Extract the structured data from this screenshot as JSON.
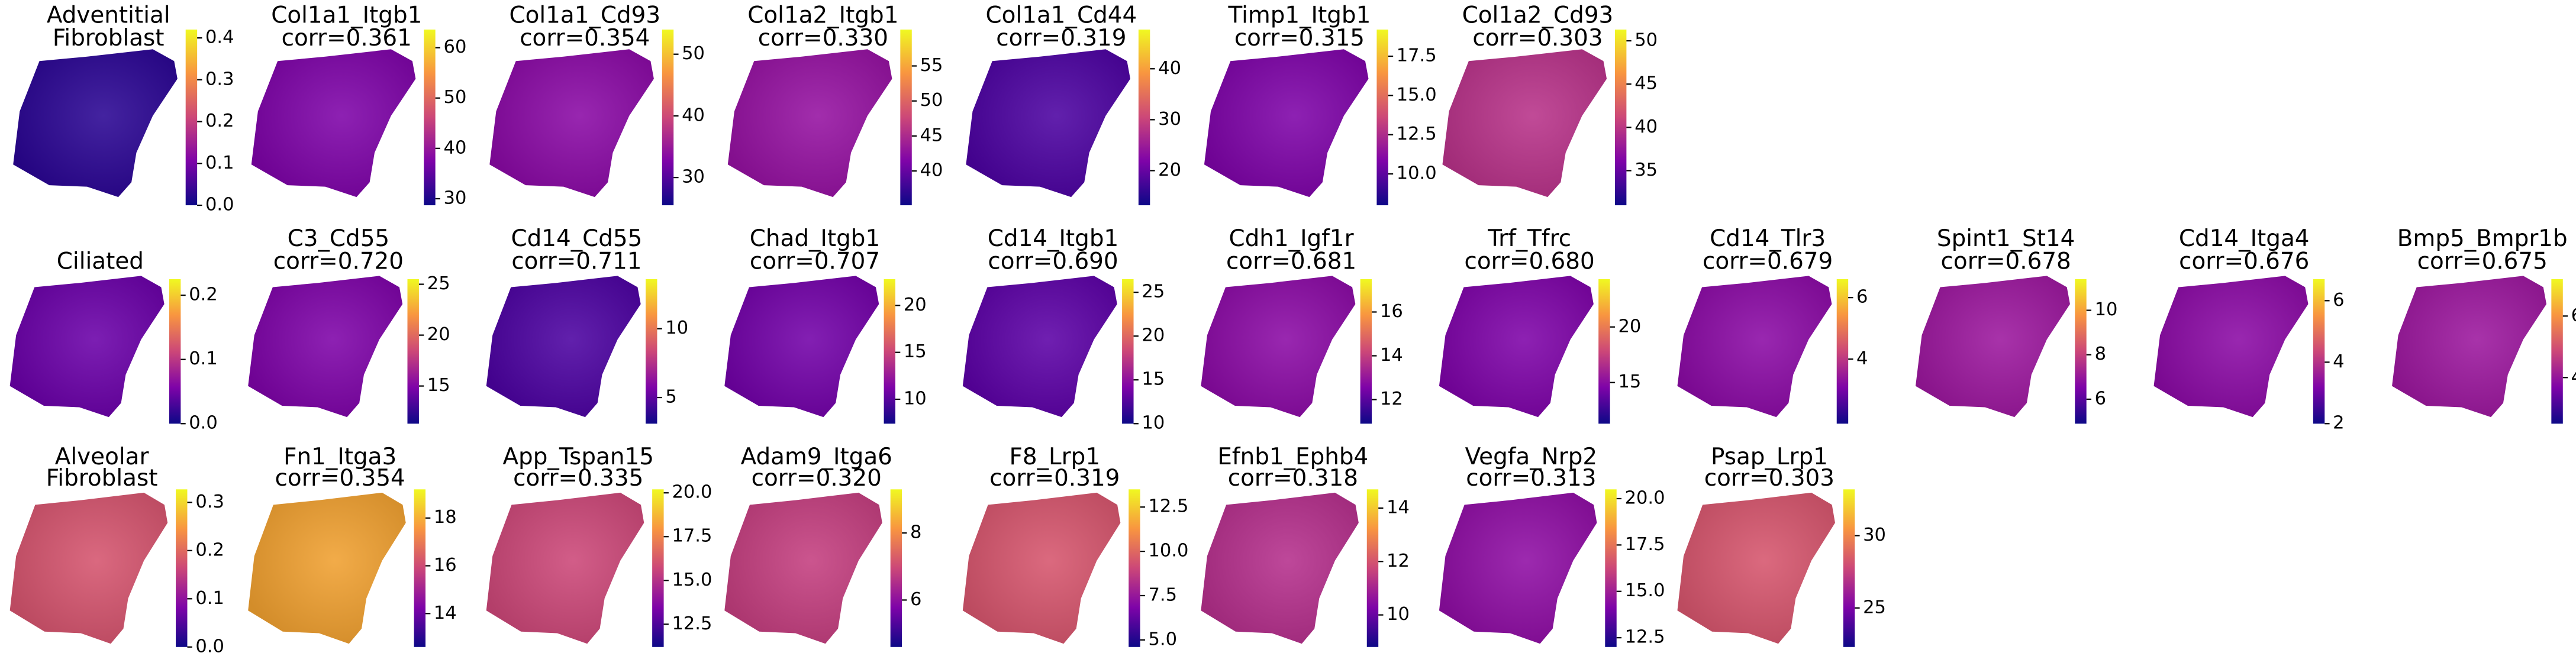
{
  "chart_data": [
    {
      "type": "heatmap",
      "title": [
        "Adventitial",
        "Fibroblast"
      ],
      "color": "#2a0593",
      "clim": [
        0,
        0.42
      ],
      "cticks": [
        {
          "value": 0,
          "label": "0.0"
        },
        0.1,
        0.2,
        0.3,
        0.4
      ]
    },
    {
      "type": "heatmap",
      "title": [
        "Col1a1_Itgb1",
        "corr=0.361"
      ],
      "color": "#7e03a8",
      "clim": [
        28.7,
        63.6
      ],
      "cticks": [
        30,
        40,
        50,
        60
      ]
    },
    {
      "type": "heatmap",
      "title": [
        "Col1a1_Cd93",
        "corr=0.354"
      ],
      "color": "#8a09a5",
      "clim": [
        25.5,
        54
      ],
      "cticks": [
        30,
        40,
        50
      ]
    },
    {
      "type": "heatmap",
      "title": [
        "Col1a2_Itgb1",
        "corr=0.330"
      ],
      "color": "#9511a1",
      "clim": [
        35.1,
        60.2
      ],
      "cticks": [
        40,
        45,
        50,
        55
      ]
    },
    {
      "type": "heatmap",
      "title": [
        "Col1a1_Cd44",
        "corr=0.319"
      ],
      "color": "#4c02a1",
      "clim": [
        13.2,
        47.7
      ],
      "cticks": [
        20,
        30,
        40
      ]
    },
    {
      "type": "heatmap",
      "title": [
        "Timp1_Itgb1",
        "corr=0.315"
      ],
      "color": "#7e03a8",
      "clim": [
        8.0,
        19.2
      ],
      "cticks": [
        {
          "value": 10,
          "label": "10.0"
        },
        12.5,
        {
          "value": 15,
          "label": "15.0"
        },
        17.5
      ]
    },
    {
      "type": "heatmap",
      "title": [
        "Col1a2_Cd93",
        "corr=0.303"
      ],
      "color": "#b83289",
      "clim": [
        31,
        51.3
      ],
      "cticks": [
        35,
        40,
        45,
        50
      ]
    },
    {
      "type": "heatmap",
      "title": [
        "Ciliated"
      ],
      "color": "#6a00a8",
      "clim": [
        0,
        0.225
      ],
      "cticks": [
        {
          "value": 0,
          "label": "0.0"
        },
        0.1,
        0.2
      ]
    },
    {
      "type": "heatmap",
      "title": [
        "C3_Cd55",
        "corr=0.720"
      ],
      "color": "#7e03a8",
      "clim": [
        11.3,
        25.5
      ],
      "cticks": [
        15,
        20,
        25
      ]
    },
    {
      "type": "heatmap",
      "title": [
        "Cd14_Cd55",
        "corr=0.711"
      ],
      "color": "#4c02a1",
      "clim": [
        3.1,
        13.6
      ],
      "cticks": [
        5,
        10
      ]
    },
    {
      "type": "heatmap",
      "title": [
        "Chad_Itgb1",
        "corr=0.707"
      ],
      "color": "#7201a8",
      "clim": [
        7.4,
        22.8
      ],
      "cticks": [
        10,
        15,
        20
      ]
    },
    {
      "type": "heatmap",
      "title": [
        "Cd14_Itgb1",
        "corr=0.690"
      ],
      "color": "#5c01a6",
      "clim": [
        10,
        26.5
      ],
      "cticks": [
        10,
        15,
        20,
        25
      ]
    },
    {
      "type": "heatmap",
      "title": [
        "Cdh1_Igf1r",
        "corr=0.681"
      ],
      "color": "#8b0aa5",
      "clim": [
        10.9,
        17.5
      ],
      "cticks": [
        12,
        14,
        16
      ]
    },
    {
      "type": "heatmap",
      "title": [
        "Trf_Tfrc",
        "corr=0.680"
      ],
      "color": "#7e03a8",
      "clim": [
        11.3,
        24.3
      ],
      "cticks": [
        15,
        20
      ]
    },
    {
      "type": "heatmap",
      "title": [
        "Cd14_Tlr3",
        "corr=0.679"
      ],
      "color": "#8b0aa5",
      "clim": [
        1.9,
        6.6
      ],
      "cticks": [
        4,
        6
      ]
    },
    {
      "type": "heatmap",
      "title": [
        "Spint1_St14",
        "corr=0.678"
      ],
      "color": "#9c179e",
      "clim": [
        4.9,
        11.4
      ],
      "cticks": [
        6,
        8,
        10
      ]
    },
    {
      "type": "heatmap",
      "title": [
        "Cd14_Itga4",
        "corr=0.676"
      ],
      "color": "#8b0aa5",
      "clim": [
        2,
        6.7
      ],
      "cticks": [
        2,
        4,
        6
      ]
    },
    {
      "type": "heatmap",
      "title": [
        "Bmp5_Bmpr1b",
        "corr=0.675"
      ],
      "color": "#9c179e",
      "clim": [
        2.5,
        7.2
      ],
      "cticks": [
        4,
        6
      ]
    },
    {
      "type": "heatmap",
      "title": [
        "Alveolar",
        "Fibroblast"
      ],
      "color": "#d5546e",
      "clim": [
        0,
        0.327
      ],
      "cticks": [
        {
          "value": 0,
          "label": "0.0"
        },
        0.1,
        0.2,
        0.3
      ]
    },
    {
      "type": "heatmap",
      "title": [
        "Fn1_Itga3",
        "corr=0.354"
      ],
      "color": "#f0a030",
      "clim": [
        12.6,
        19.2
      ],
      "cticks": [
        14,
        16,
        18
      ]
    },
    {
      "type": "heatmap",
      "title": [
        "App_Tspan15",
        "corr=0.335"
      ],
      "color": "#cc4778",
      "clim": [
        11.2,
        20.2
      ],
      "cticks": [
        12.5,
        {
          "value": 15,
          "label": "15.0"
        },
        17.5,
        {
          "value": 20,
          "label": "20.0"
        }
      ]
    },
    {
      "type": "heatmap",
      "title": [
        "Adam9_Itga6",
        "corr=0.320"
      ],
      "color": "#c43e7f",
      "clim": [
        4.6,
        9.3
      ],
      "cticks": [
        6,
        8
      ]
    },
    {
      "type": "heatmap",
      "title": [
        "F8_Lrp1",
        "corr=0.319"
      ],
      "color": "#d6556d",
      "clim": [
        4.6,
        13.5
      ],
      "cticks": [
        {
          "value": 5,
          "label": "5.0"
        },
        7.5,
        {
          "value": 10,
          "label": "10.0"
        },
        12.5
      ]
    },
    {
      "type": "heatmap",
      "title": [
        "Efnb1_Ephb4",
        "corr=0.318"
      ],
      "color": "#b52f8c",
      "clim": [
        8.8,
        14.7
      ],
      "cticks": [
        10,
        12,
        14
      ]
    },
    {
      "type": "heatmap",
      "title": [
        "Vegfa_Nrp2",
        "corr=0.313"
      ],
      "color": "#8f0da4",
      "clim": [
        12,
        20.5
      ],
      "cticks": [
        12.5,
        {
          "value": 15,
          "label": "15.0"
        },
        17.5,
        {
          "value": 20,
          "label": "20.0"
        }
      ]
    },
    {
      "type": "heatmap",
      "title": [
        "Psap_Lrp1",
        "corr=0.303"
      ],
      "color": "#d6556d",
      "clim": [
        22.3,
        33.2
      ],
      "cticks": [
        25,
        30
      ]
    }
  ]
}
